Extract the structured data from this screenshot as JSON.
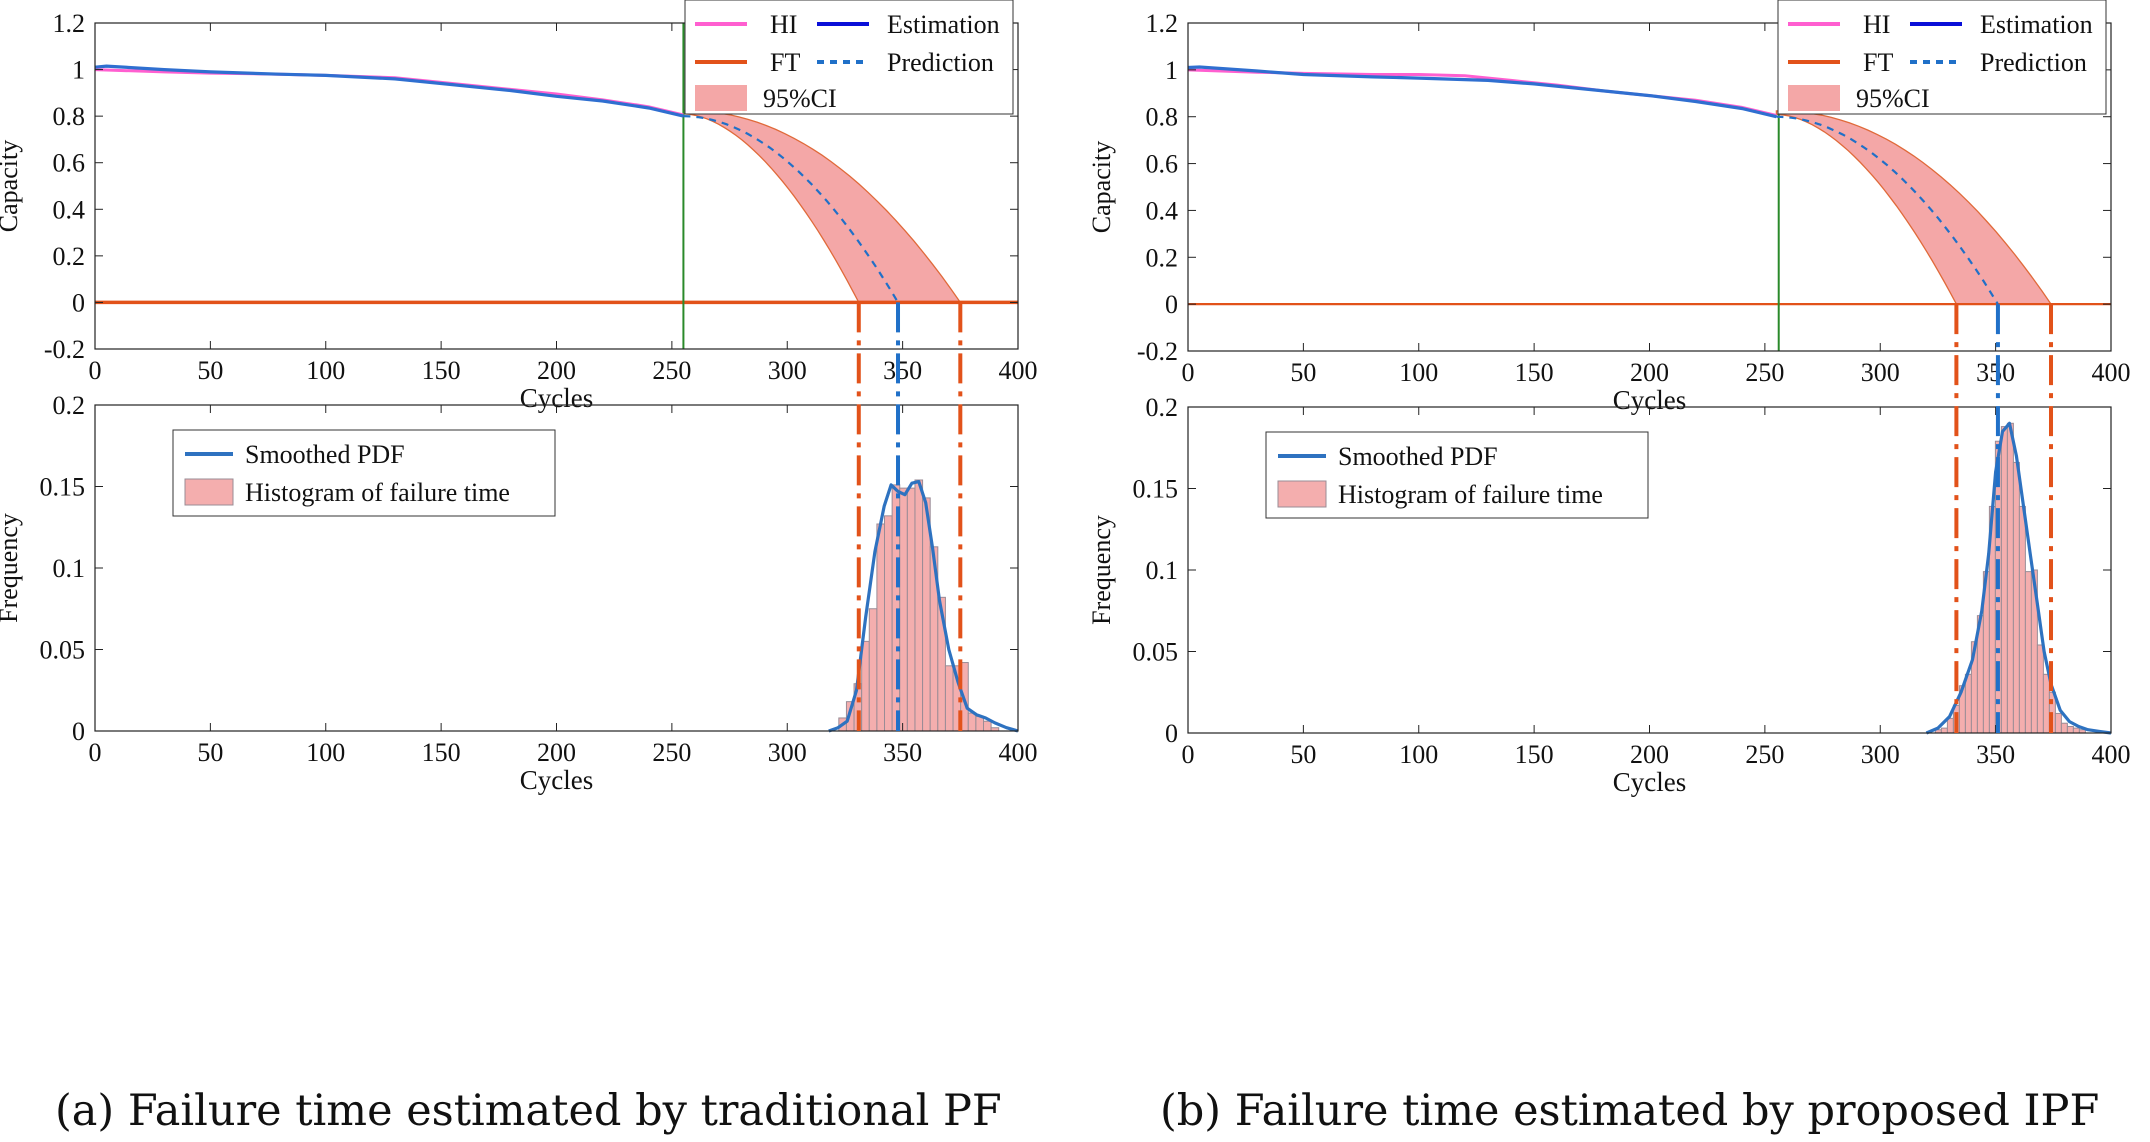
{
  "captions": {
    "a": "(a) Failure time estimated by traditional PF",
    "b": "(b) Failure time estimated by proposed IPF"
  },
  "colors": {
    "hi": "#ff5fd0",
    "estimation": "#0a10d8",
    "estimation_visible": "#2f6fd0",
    "ft": "#e2521a",
    "prediction": "#2070c8",
    "ci_fill": "#f4a7a7",
    "ci_edge": "#e06a3a",
    "threshold": "#2a8a2a",
    "pdf": "#2e72c0",
    "hist_fill": "#f4aeae",
    "hist_edge": "#9a8c96"
  },
  "chart_data": [
    {
      "panel": "a",
      "type": "line",
      "xlabel": "Cycles",
      "ylabel": "Capacity",
      "xlim": [
        0,
        400
      ],
      "ylim": [
        -0.2,
        1.2
      ],
      "xticks": [
        0,
        50,
        100,
        150,
        200,
        250,
        300,
        350,
        400
      ],
      "yticks": [
        -0.2,
        0,
        0.2,
        0.4,
        0.6,
        0.8,
        1,
        1.2
      ],
      "ytick_labels": [
        "-0.2",
        "0",
        "0.2",
        "0.4",
        "0.6",
        "0.8",
        "1",
        "1.2"
      ],
      "legend": {
        "placement": "top-right",
        "entries": [
          {
            "label": "HI",
            "kind": "line",
            "color": "hi"
          },
          {
            "label": "Estimation",
            "kind": "line",
            "color": "estimation"
          },
          {
            "label": "FT",
            "kind": "line",
            "color": "ft"
          },
          {
            "label": "Prediction",
            "kind": "dashed",
            "color": "prediction"
          },
          {
            "label": "95%CI",
            "kind": "patch",
            "color": "ci_fill"
          }
        ]
      },
      "series": [
        {
          "name": "HI",
          "x": [
            0,
            30,
            50,
            80,
            100,
            130,
            150,
            180,
            200,
            220,
            240,
            255
          ],
          "y": [
            1.0,
            0.99,
            0.985,
            0.98,
            0.975,
            0.965,
            0.945,
            0.915,
            0.895,
            0.87,
            0.84,
            0.805
          ]
        },
        {
          "name": "Estimation",
          "x": [
            0,
            5,
            30,
            50,
            80,
            100,
            130,
            150,
            180,
            200,
            220,
            240,
            255
          ],
          "y": [
            1.01,
            1.015,
            1.0,
            0.99,
            0.98,
            0.975,
            0.96,
            0.94,
            0.91,
            0.885,
            0.865,
            0.835,
            0.8
          ]
        },
        {
          "name": "FT",
          "x": [
            0,
            400
          ],
          "y": [
            0,
            0
          ]
        },
        {
          "name": "Prediction",
          "x": [
            255,
            280,
            300,
            320,
            335,
            348
          ],
          "y": [
            0.8,
            0.69,
            0.56,
            0.37,
            0.2,
            0
          ]
        }
      ],
      "ci": {
        "x_start": 255,
        "lower_x0": 331,
        "upper_x0": 375,
        "y_start": 0.81,
        "upper_start": 0.825
      },
      "threshold_x": 255,
      "ft_markers": {
        "lower": 331,
        "mean": 348,
        "upper": 375
      }
    },
    {
      "panel": "a",
      "type": "bar",
      "xlabel": "Cycles",
      "ylabel": "Frequency",
      "xlim": [
        0,
        400
      ],
      "ylim": [
        0,
        0.2
      ],
      "xticks": [
        0,
        50,
        100,
        150,
        200,
        250,
        300,
        350,
        400
      ],
      "yticks": [
        0,
        0.05,
        0.1,
        0.15,
        0.2
      ],
      "ytick_labels": [
        "0",
        "0.05",
        "0.1",
        "0.15",
        "0.2"
      ],
      "legend": {
        "placement": "upper-left",
        "entries": [
          {
            "label": "Smoothed PDF",
            "kind": "line",
            "color": "pdf"
          },
          {
            "label": "Histogram of failure time",
            "kind": "patch",
            "color": "hist_fill"
          }
        ]
      },
      "histogram": {
        "bin_width": 3.3,
        "centers": [
          324,
          327.3,
          330.6,
          333.9,
          337.2,
          340.5,
          343.8,
          347.1,
          350.4,
          353.7,
          357,
          360.3,
          363.6,
          366.9,
          370.2,
          373.5,
          376.8,
          380.1,
          383.4,
          386.7,
          390
        ],
        "values": [
          0.008,
          0.018,
          0.029,
          0.055,
          0.075,
          0.127,
          0.132,
          0.151,
          0.149,
          0.149,
          0.154,
          0.143,
          0.113,
          0.082,
          0.04,
          0.04,
          0.042,
          0.011,
          0.009,
          0.006,
          0.002
        ]
      },
      "pdf": {
        "x": [
          318,
          322,
          326,
          330,
          334,
          338,
          342,
          345,
          348,
          351,
          354,
          357,
          360,
          363,
          366,
          370,
          374,
          378,
          382,
          386,
          390,
          395,
          400
        ],
        "y": [
          0,
          0.002,
          0.006,
          0.025,
          0.07,
          0.11,
          0.138,
          0.151,
          0.147,
          0.145,
          0.152,
          0.153,
          0.14,
          0.112,
          0.08,
          0.05,
          0.03,
          0.014,
          0.01,
          0.008,
          0.005,
          0.002,
          0
        ]
      },
      "ft_markers": {
        "lower": 331,
        "mean": 348,
        "upper": 375
      }
    },
    {
      "panel": "b",
      "type": "line",
      "xlabel": "Cycles",
      "ylabel": "Capacity",
      "xlim": [
        0,
        400
      ],
      "ylim": [
        -0.2,
        1.2
      ],
      "xticks": [
        0,
        50,
        100,
        150,
        200,
        250,
        300,
        350,
        400
      ],
      "yticks": [
        -0.2,
        0,
        0.2,
        0.4,
        0.6,
        0.8,
        1,
        1.2
      ],
      "ytick_labels": [
        "-0.2",
        "0",
        "0.2",
        "0.4",
        "0.6",
        "0.8",
        "1",
        "1.2"
      ],
      "legend": {
        "placement": "top-right",
        "entries": [
          {
            "label": "HI",
            "kind": "line",
            "color": "hi"
          },
          {
            "label": "Estimation",
            "kind": "line",
            "color": "estimation"
          },
          {
            "label": "FT",
            "kind": "line",
            "color": "ft"
          },
          {
            "label": "Prediction",
            "kind": "dashed",
            "color": "prediction"
          },
          {
            "label": "95%CI",
            "kind": "patch",
            "color": "ci_fill"
          }
        ]
      },
      "series": [
        {
          "name": "HI",
          "x": [
            0,
            30,
            50,
            80,
            100,
            120,
            140,
            160,
            180,
            200,
            220,
            240,
            255
          ],
          "y": [
            1.0,
            0.99,
            0.985,
            0.98,
            0.98,
            0.975,
            0.955,
            0.935,
            0.91,
            0.89,
            0.87,
            0.84,
            0.805
          ]
        },
        {
          "name": "Estimation",
          "x": [
            0,
            5,
            30,
            50,
            80,
            100,
            130,
            150,
            180,
            200,
            220,
            240,
            255
          ],
          "y": [
            1.01,
            1.012,
            0.995,
            0.98,
            0.97,
            0.965,
            0.955,
            0.94,
            0.91,
            0.89,
            0.865,
            0.835,
            0.8
          ]
        },
        {
          "name": "FT",
          "x": [
            0,
            400
          ],
          "y": [
            0,
            0
          ]
        },
        {
          "name": "Prediction",
          "x": [
            255,
            280,
            300,
            320,
            335,
            351
          ],
          "y": [
            0.8,
            0.69,
            0.56,
            0.37,
            0.2,
            0
          ]
        }
      ],
      "ci": {
        "x_start": 255,
        "lower_x0": 333,
        "upper_x0": 374,
        "y_start": 0.81,
        "upper_start": 0.825
      },
      "threshold_x": 256,
      "ft_markers": {
        "lower": 333,
        "mean": 351,
        "upper": 374
      }
    },
    {
      "panel": "b",
      "type": "bar",
      "xlabel": "Cycles",
      "ylabel": "Frequency",
      "xlim": [
        0,
        400
      ],
      "ylim": [
        0,
        0.2
      ],
      "xticks": [
        0,
        50,
        100,
        150,
        200,
        250,
        300,
        350,
        400
      ],
      "yticks": [
        0,
        0.05,
        0.1,
        0.15,
        0.2
      ],
      "ytick_labels": [
        "0",
        "0.05",
        "0.1",
        "0.15",
        "0.2"
      ],
      "legend": {
        "placement": "upper-left",
        "entries": [
          {
            "label": "Smoothed PDF",
            "kind": "line",
            "color": "pdf"
          },
          {
            "label": "Histogram of failure time",
            "kind": "patch",
            "color": "hist_fill"
          }
        ]
      },
      "histogram": {
        "bin_width": 2.6,
        "centers": [
          325.2,
          327.8,
          330.4,
          333,
          335.6,
          338.2,
          340.8,
          343.4,
          346,
          348.6,
          351.2,
          353.8,
          356.4,
          359,
          361.6,
          364.2,
          366.8,
          369.4,
          372,
          374.6,
          377.2,
          379.8,
          382.4,
          385,
          387.6
        ],
        "values": [
          0.002,
          0.003,
          0.009,
          0.017,
          0.029,
          0.036,
          0.056,
          0.072,
          0.099,
          0.139,
          0.179,
          0.188,
          0.19,
          0.166,
          0.139,
          0.099,
          0.1,
          0.054,
          0.036,
          0.025,
          0.012,
          0.006,
          0.004,
          0.003,
          0.002
        ]
      },
      "pdf": {
        "x": [
          320,
          325,
          330,
          335,
          340,
          344,
          347,
          350,
          353,
          356,
          359,
          362,
          365,
          368,
          371,
          374,
          378,
          382,
          386,
          390,
          395,
          400
        ],
        "y": [
          0,
          0.003,
          0.01,
          0.025,
          0.045,
          0.075,
          0.11,
          0.16,
          0.185,
          0.19,
          0.17,
          0.14,
          0.11,
          0.08,
          0.05,
          0.03,
          0.014,
          0.007,
          0.004,
          0.002,
          0.001,
          0
        ]
      },
      "ft_markers": {
        "lower": 333,
        "mean": 351,
        "upper": 374
      }
    }
  ]
}
